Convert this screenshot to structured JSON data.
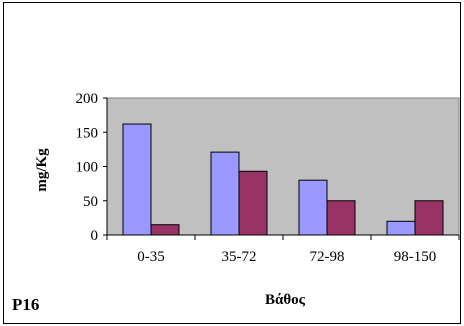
{
  "chart_data": {
    "type": "bar",
    "panel_label": "P16",
    "xlabel": "Βάθος",
    "ylabel": "mg/Kg",
    "categories": [
      "0-35",
      "35-72",
      "72-98",
      "98-150"
    ],
    "series": [
      {
        "color": "#9999ff",
        "values": [
          162,
          121,
          80,
          20
        ]
      },
      {
        "color": "#993366",
        "values": [
          15,
          93,
          50,
          50
        ]
      }
    ],
    "ylim": [
      0,
      200
    ],
    "yticks": [
      "0",
      "50",
      "100",
      "150",
      "200"
    ],
    "plot_background": "#c0c0c0",
    "grid": false,
    "legend": "none"
  }
}
